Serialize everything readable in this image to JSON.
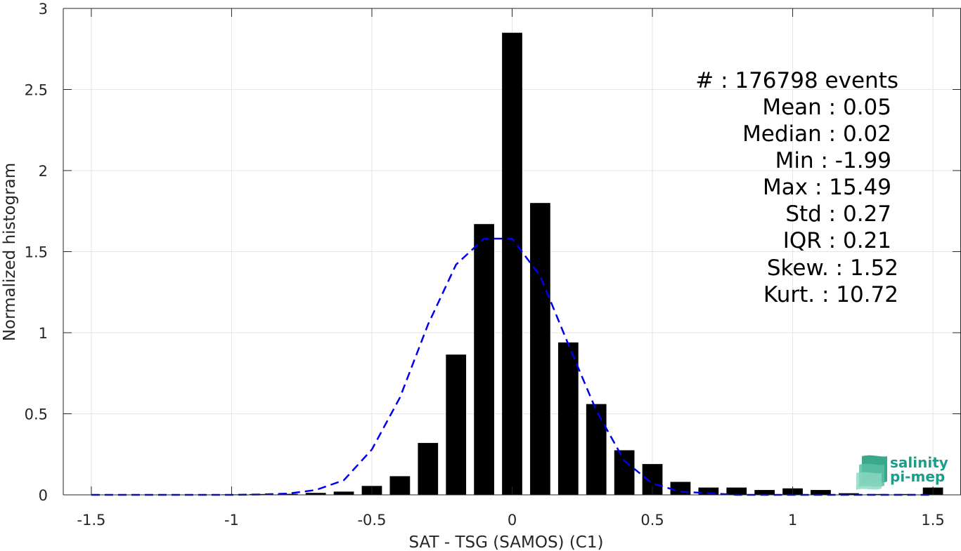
{
  "chart_data": {
    "type": "bar",
    "xlabel": "SAT - TSG (SAMOS) (C1)",
    "ylabel": "Normalized histogram",
    "xlim": [
      -1.6,
      1.6
    ],
    "ylim": [
      0,
      3
    ],
    "grid": true,
    "x_ticks": [
      -1.5,
      -1,
      -0.5,
      0,
      0.5,
      1,
      1.5
    ],
    "x_tick_labels": [
      "-1.5",
      "-1",
      "-0.5",
      "0",
      "0.5",
      "1",
      "1.5"
    ],
    "y_ticks": [
      0,
      0.5,
      1,
      1.5,
      2,
      2.5,
      3
    ],
    "y_tick_labels": [
      "0",
      "0.5",
      "1",
      "1.5",
      "2",
      "2.5",
      "3"
    ],
    "bars": {
      "color": "#000000",
      "x": [
        -1.5,
        -1.4,
        -1.3,
        -1.2,
        -1.1,
        -1.0,
        -0.9,
        -0.8,
        -0.7,
        -0.6,
        -0.5,
        -0.4,
        -0.3,
        -0.2,
        -0.1,
        0.0,
        0.1,
        0.2,
        0.3,
        0.4,
        0.5,
        0.6,
        0.7,
        0.8,
        0.9,
        1.0,
        1.1,
        1.2,
        1.3,
        1.4,
        1.5
      ],
      "values": [
        0.0,
        0.0,
        0.0,
        0.0,
        0.0,
        0.003,
        0.005,
        0.006,
        0.012,
        0.02,
        0.055,
        0.115,
        0.32,
        0.865,
        1.67,
        2.85,
        1.8,
        0.94,
        0.56,
        0.275,
        0.19,
        0.08,
        0.045,
        0.045,
        0.03,
        0.04,
        0.03,
        0.01,
        0.005,
        0.005,
        0.045
      ]
    },
    "fit": {
      "style": "dashed",
      "color": "#0000ee",
      "x": [
        -1.5,
        -1.4,
        -1.3,
        -1.2,
        -1.1,
        -1.0,
        -0.9,
        -0.8,
        -0.7,
        -0.6,
        -0.5,
        -0.4,
        -0.3,
        -0.2,
        -0.1,
        0.0,
        0.1,
        0.2,
        0.3,
        0.4,
        0.5,
        0.6,
        0.7,
        0.8,
        0.9,
        1.0,
        1.1,
        1.2,
        1.3,
        1.4,
        1.5
      ],
      "values": [
        0.0,
        0.0,
        0.0,
        0.0,
        0.0,
        0.0,
        0.002,
        0.008,
        0.03,
        0.09,
        0.28,
        0.6,
        1.05,
        1.42,
        1.58,
        1.58,
        1.35,
        0.93,
        0.52,
        0.21,
        0.07,
        0.02,
        0.01,
        0.0,
        0.0,
        0.0,
        0.0,
        0.0,
        0.0,
        0.0,
        0.0
      ]
    }
  },
  "stats": [
    {
      "label": "#  ",
      "value": "176798 events"
    },
    {
      "label": "Mean",
      "value": "0.05"
    },
    {
      "label": "Median",
      "value": "0.02"
    },
    {
      "label": "Min",
      "value": "-1.99"
    },
    {
      "label": "Max",
      "value": "15.49"
    },
    {
      "label": "Std",
      "value": "0.27"
    },
    {
      "label": "IQR",
      "value": "0.21"
    },
    {
      "label": "Skew.",
      "value": "1.52"
    },
    {
      "label": "Kurt.",
      "value": "10.72"
    }
  ],
  "logo": {
    "line1": "salinity",
    "line2": "pi-mep"
  }
}
